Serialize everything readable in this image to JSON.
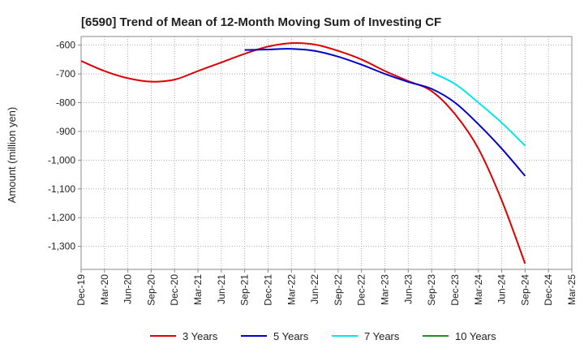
{
  "chart_data": {
    "type": "line",
    "title": "[6590]  Trend of Mean of 12-Month Moving Sum of Investing CF",
    "xlabel": "",
    "ylabel": "Amount (million yen)",
    "ylim": [
      -1380,
      -570
    ],
    "y_ticks": [
      -600,
      -700,
      -800,
      -900,
      -1000,
      -1100,
      -1200,
      -1300
    ],
    "y_tick_labels": [
      "-600",
      "-700",
      "-800",
      "-900",
      "-1,000",
      "-1,100",
      "-1,200",
      "-1,300"
    ],
    "x_tick_labels": [
      "Dec-19",
      "Mar-20",
      "Jun-20",
      "Sep-20",
      "Dec-20",
      "Mar-21",
      "Jun-21",
      "Sep-21",
      "Dec-21",
      "Mar-22",
      "Jun-22",
      "Sep-22",
      "Dec-22",
      "Mar-23",
      "Jun-23",
      "Sep-23",
      "Dec-23",
      "Mar-24",
      "Jun-24",
      "Sep-24",
      "Dec-24",
      "Mar-25"
    ],
    "grid": true,
    "legend_position": "bottom",
    "series": [
      {
        "name": "3 Years",
        "color": "#dd0000",
        "start_index": 0,
        "values": [
          -655,
          -690,
          -715,
          -727,
          -720,
          -690,
          -660,
          -630,
          -605,
          -593,
          -598,
          -620,
          -650,
          -690,
          -725,
          -760,
          -840,
          -960,
          -1140,
          -1360
        ]
      },
      {
        "name": "5 Years",
        "color": "#0000cc",
        "start_index": 7,
        "values": [
          -617,
          -615,
          -613,
          -620,
          -640,
          -668,
          -700,
          -728,
          -752,
          -800,
          -875,
          -960,
          -1055
        ]
      },
      {
        "name": "7 Years",
        "color": "#00e5ee",
        "start_index": 15,
        "values": [
          -695,
          -735,
          -800,
          -870,
          -950
        ]
      },
      {
        "name": "10 Years",
        "color": "#228b22",
        "start_index": 0,
        "values": []
      }
    ]
  }
}
